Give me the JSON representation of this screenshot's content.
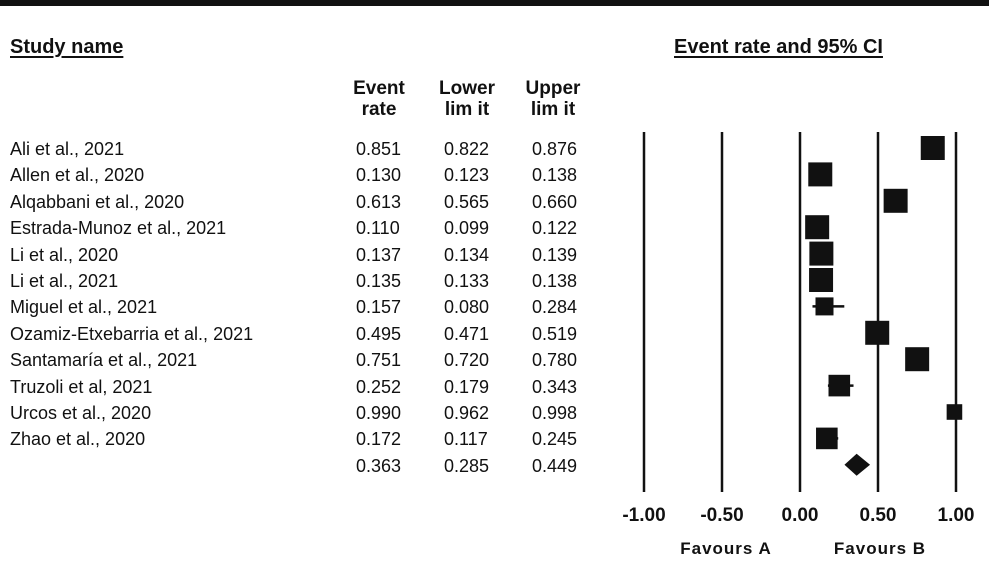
{
  "headers": {
    "study_name": "Study name",
    "plot_title": "Event rate and 95% CI",
    "event_rate": [
      "Event",
      "rate"
    ],
    "lower_limit": [
      "Lower",
      "lim it"
    ],
    "upper_limit": [
      "Upper",
      "lim it"
    ]
  },
  "favours": {
    "left": "Favours A",
    "right": "Favours B"
  },
  "chart_data": {
    "type": "forest",
    "title": "Event rate and 95% CI",
    "x_ticks": [
      "-1.00",
      "-0.50",
      "0.00",
      "0.50",
      "1.00"
    ],
    "xlim": [
      -1.0,
      1.0
    ],
    "studies": [
      {
        "name": "Ali et al., 2021",
        "rate": "0.851",
        "lower": "0.822",
        "upper": "0.876",
        "size": 1.0
      },
      {
        "name": "Allen et al., 2020",
        "rate": "0.130",
        "lower": "0.123",
        "upper": "0.138",
        "size": 1.0
      },
      {
        "name": "Alqabbani et al., 2020",
        "rate": "0.613",
        "lower": "0.565",
        "upper": "0.660",
        "size": 1.0
      },
      {
        "name": "Estrada-Munoz et al., 2021",
        "rate": "0.110",
        "lower": "0.099",
        "upper": "0.122",
        "size": 1.0
      },
      {
        "name": "Li et al., 2020",
        "rate": "0.137",
        "lower": "0.134",
        "upper": "0.139",
        "size": 1.0
      },
      {
        "name": "Li et al., 2021",
        "rate": "0.135",
        "lower": "0.133",
        "upper": "0.138",
        "size": 1.0
      },
      {
        "name": "Miguel et al., 2021",
        "rate": "0.157",
        "lower": "0.080",
        "upper": "0.284",
        "size": 0.75
      },
      {
        "name": "Ozamiz-Etxebarria et al., 2021",
        "rate": "0.495",
        "lower": "0.471",
        "upper": "0.519",
        "size": 1.0
      },
      {
        "name": "Santamaría et al., 2021",
        "rate": "0.751",
        "lower": "0.720",
        "upper": "0.780",
        "size": 1.0
      },
      {
        "name": "Truzoli et al, 2021",
        "rate": "0.252",
        "lower": "0.179",
        "upper": "0.343",
        "size": 0.9
      },
      {
        "name": "Urcos et al., 2020",
        "rate": "0.990",
        "lower": "0.962",
        "upper": "0.998",
        "size": 0.65
      },
      {
        "name": "Zhao et al., 2020",
        "rate": "0.172",
        "lower": "0.117",
        "upper": "0.245",
        "size": 0.9
      }
    ],
    "summary": {
      "rate": "0.363",
      "lower": "0.285",
      "upper": "0.449"
    }
  }
}
